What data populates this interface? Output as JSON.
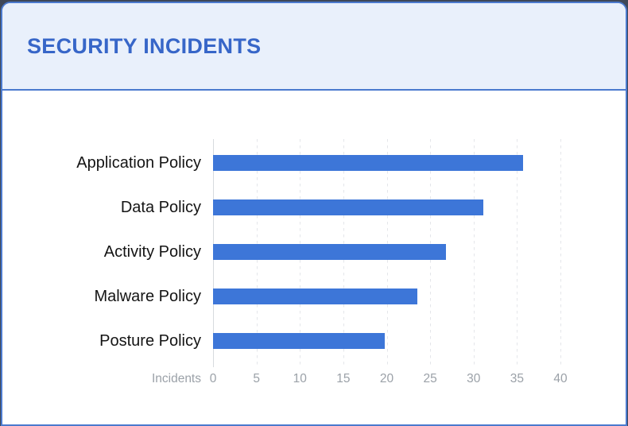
{
  "header": {
    "title": "SECURITY INCIDENTS"
  },
  "colors": {
    "bar": "#3D76D8",
    "card_border": "#4B7ACE",
    "header_bg": "#E9F0FB",
    "title_text": "#3766C8",
    "tick_text": "#9BA1A8",
    "category_text": "#141414",
    "gridline": "#E4E6EA",
    "zero_axis_line": "#D7DADE"
  },
  "chart_data": {
    "type": "bar",
    "orientation": "horizontal",
    "title": "SECURITY INCIDENTS",
    "categories": [
      "Application Policy",
      "Data Policy",
      "Activity Policy",
      "Malware Policy",
      "Posture Policy"
    ],
    "values": [
      35.7,
      31.1,
      26.8,
      23.5,
      19.8
    ],
    "xlabel": "Incidents",
    "ylabel": "",
    "x_ticks": [
      0,
      5,
      10,
      15,
      20,
      25,
      30,
      35,
      40
    ],
    "xlim": [
      0,
      40
    ],
    "grid": "vertical-dashed",
    "legend": "none"
  }
}
